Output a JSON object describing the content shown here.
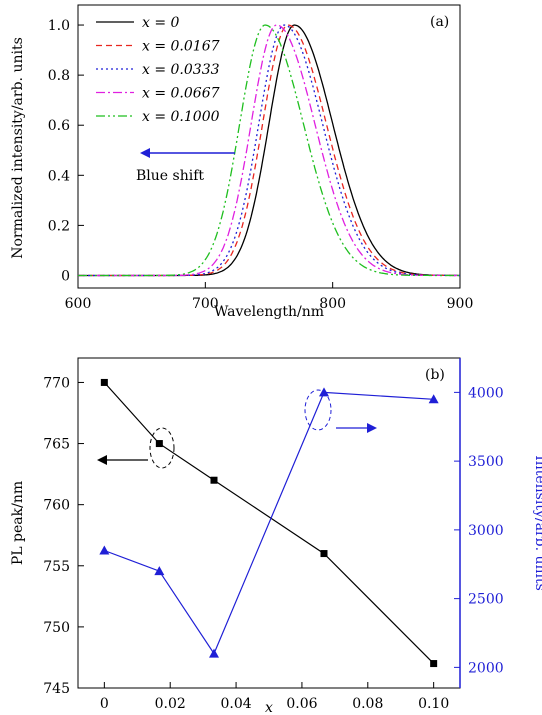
{
  "chart_data": [
    {
      "type": "line",
      "panel_label": "(a)",
      "xlabel": "Wavelength/nm",
      "ylabel": "Normalized intensity/arb. units",
      "xlim": [
        600,
        900
      ],
      "ylim": [
        -0.05,
        1.08
      ],
      "x_ticks": [
        "600",
        "700",
        "800",
        "900"
      ],
      "y_ticks": [
        "0",
        "0.2",
        "0.4",
        "0.6",
        "0.8",
        "1.0"
      ],
      "annotation": "Blue shift",
      "legend_position": "top-left",
      "series": [
        {
          "name": "x = 0",
          "color": "#000000",
          "dash": "none",
          "peak": 770,
          "wl": 20,
          "wr": 30
        },
        {
          "name": "x = 0.0167",
          "color": "#e8261f",
          "dash": "6,4",
          "peak": 765,
          "wl": 20,
          "wr": 30
        },
        {
          "name": "x = 0.0333",
          "color": "#1f1fd6",
          "dash": "2,3",
          "peak": 762,
          "wl": 20,
          "wr": 30
        },
        {
          "name": "x = 0.0667",
          "color": "#e020e0",
          "dash": "9,3,2,3",
          "peak": 756,
          "wl": 20,
          "wr": 30
        },
        {
          "name": "x = 0.1000",
          "color": "#1fbf1f",
          "dash": "9,3,2,3,2,3",
          "peak": 747,
          "wl": 20,
          "wr": 30
        }
      ]
    },
    {
      "type": "line",
      "panel_label": "(b)",
      "xlabel": "x",
      "ylabel": "PL peak/nm",
      "y2label": "Intensity/arb. units",
      "xlim": [
        -0.008,
        0.108
      ],
      "ylim": [
        745,
        772
      ],
      "y2lim": [
        1850,
        4250
      ],
      "x_ticks": [
        "0",
        "0.02",
        "0.04",
        "0.06",
        "0.08",
        "0.10"
      ],
      "y_ticks": [
        "745",
        "750",
        "755",
        "760",
        "765",
        "770"
      ],
      "y2_ticks": [
        "2000",
        "2500",
        "3000",
        "3500",
        "4000"
      ],
      "series": [
        {
          "name": "PL peak",
          "axis": "left",
          "color": "#000000",
          "marker": "square",
          "x": [
            0,
            0.0167,
            0.0333,
            0.0667,
            0.1
          ],
          "y": [
            770,
            765,
            762,
            756,
            747
          ]
        },
        {
          "name": "Intensity",
          "axis": "right",
          "color": "#1f1fd6",
          "marker": "triangle",
          "x": [
            0,
            0.0167,
            0.0333,
            0.0667,
            0.1
          ],
          "y": [
            2850,
            2700,
            2100,
            4000,
            3950
          ]
        }
      ]
    }
  ]
}
